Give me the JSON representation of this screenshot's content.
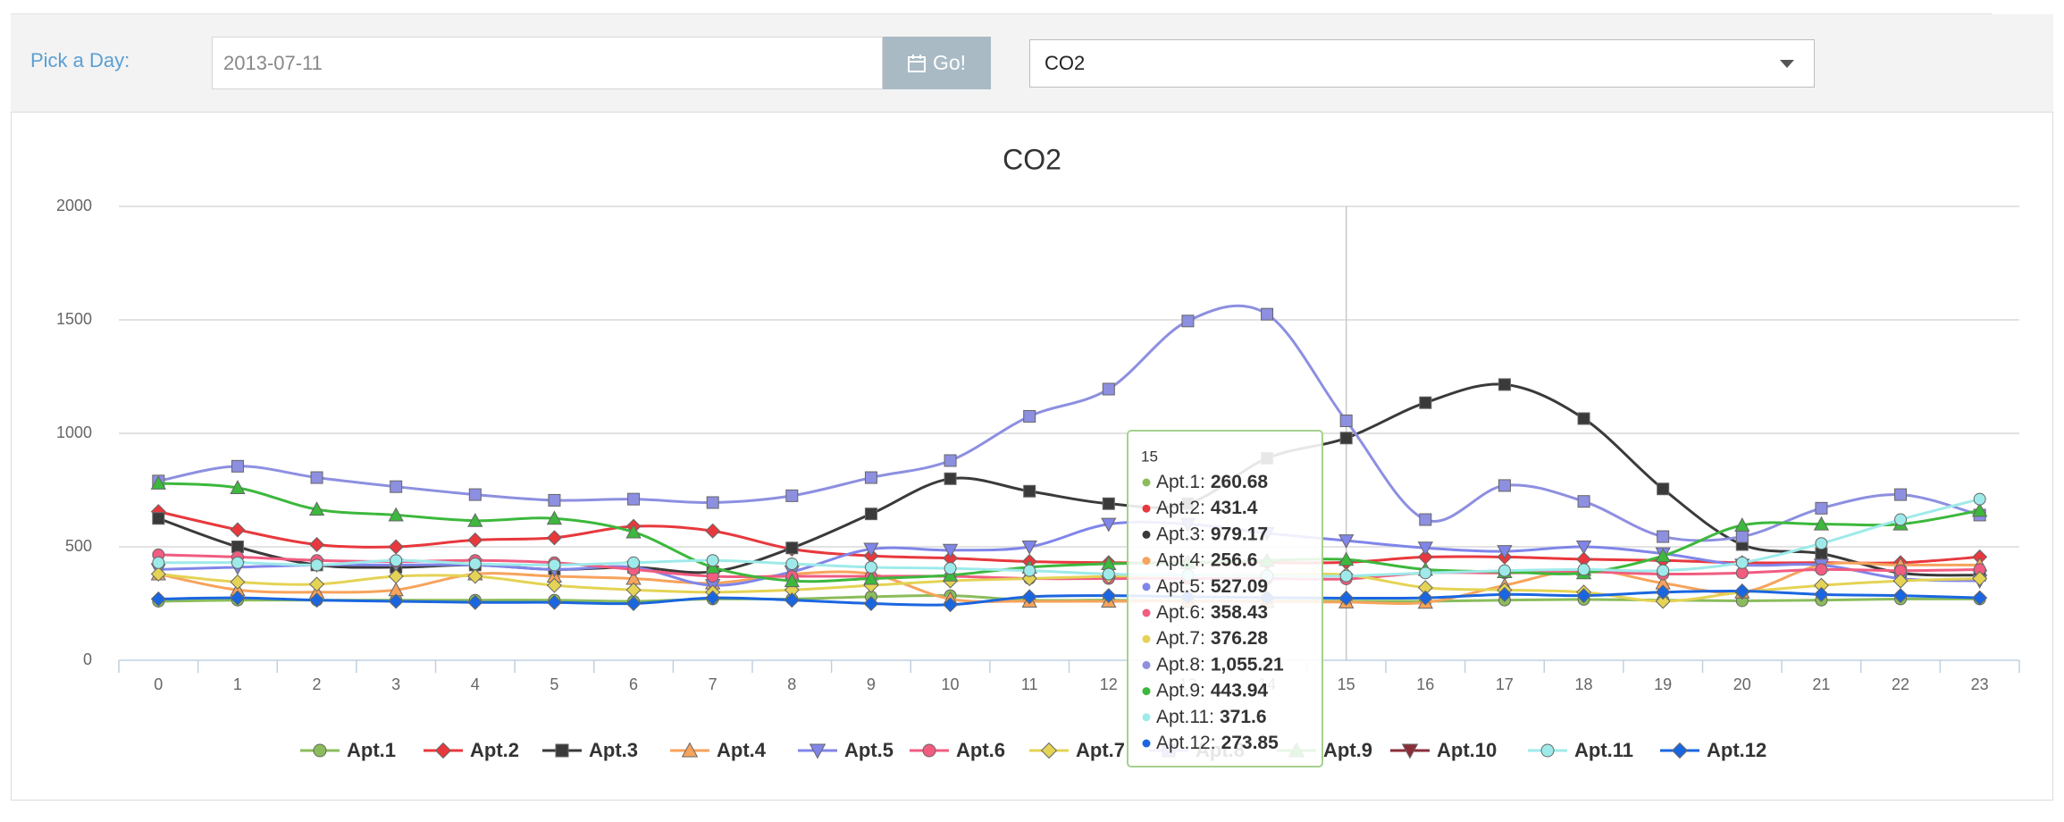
{
  "header": {
    "label": "Pick a Day:",
    "date": "2013-07-11",
    "button": "Go!",
    "select": "CO2"
  },
  "chart_data": {
    "type": "line",
    "title": "CO2",
    "categories": [
      0,
      1,
      2,
      3,
      4,
      5,
      6,
      7,
      8,
      9,
      10,
      11,
      12,
      13,
      14,
      15,
      16,
      17,
      18,
      19,
      20,
      21,
      22,
      23
    ],
    "ylim": [
      0,
      2000
    ],
    "yticks": [
      0,
      500,
      1000,
      1500,
      2000
    ],
    "grid": true,
    "smooth": true,
    "legend": "bottom",
    "series": [
      {
        "name": "Apt.1",
        "color": "#8bbc5b",
        "symbol": "circle",
        "values": [
          260,
          265,
          265,
          265,
          265,
          265,
          260,
          270,
          270,
          280,
          285,
          265,
          265,
          262,
          261,
          260.68,
          260,
          265,
          268,
          265,
          262,
          265,
          270,
          270
        ]
      },
      {
        "name": "Apt.2",
        "color": "#e8383d",
        "symbol": "diamond",
        "values": [
          655,
          575,
          510,
          500,
          530,
          540,
          590,
          570,
          490,
          460,
          450,
          435,
          430,
          430,
          430,
          431.4,
          455,
          455,
          445,
          440,
          430,
          430,
          430,
          455
        ]
      },
      {
        "name": "Apt.3",
        "color": "#3a3a3a",
        "symbol": "square",
        "values": [
          625,
          500,
          420,
          410,
          420,
          400,
          410,
          390,
          495,
          645,
          800,
          745,
          690,
          690,
          890,
          979.17,
          1135,
          1215,
          1065,
          755,
          510,
          470,
          385,
          375
        ]
      },
      {
        "name": "Apt.4",
        "color": "#f7a35c",
        "symbol": "triangle",
        "values": [
          380,
          310,
          300,
          310,
          380,
          370,
          360,
          340,
          380,
          380,
          270,
          260,
          260,
          260,
          258,
          256.6,
          255,
          330,
          400,
          340,
          300,
          420,
          420,
          420
        ]
      },
      {
        "name": "Apt.5",
        "color": "#8085e9",
        "symbol": "triangle-down",
        "values": [
          400,
          410,
          420,
          420,
          420,
          400,
          410,
          330,
          390,
          490,
          485,
          500,
          600,
          600,
          560,
          527.09,
          495,
          480,
          500,
          470,
          420,
          420,
          360,
          350
        ]
      },
      {
        "name": "Apt.6",
        "color": "#f15c80",
        "symbol": "circle",
        "values": [
          465,
          455,
          440,
          435,
          440,
          430,
          400,
          370,
          370,
          370,
          370,
          360,
          360,
          360,
          360,
          358.43,
          385,
          385,
          390,
          380,
          385,
          400,
          395,
          400
        ]
      },
      {
        "name": "Apt.7",
        "color": "#e4d354",
        "symbol": "diamond",
        "values": [
          380,
          345,
          335,
          370,
          370,
          330,
          310,
          300,
          310,
          330,
          350,
          360,
          370,
          375,
          376,
          376.28,
          320,
          310,
          300,
          260,
          300,
          330,
          350,
          360
        ]
      },
      {
        "name": "Apt.8",
        "color": "#8d8fe0",
        "symbol": "square",
        "values": [
          790,
          855,
          805,
          765,
          730,
          705,
          710,
          695,
          725,
          805,
          880,
          1075,
          1195,
          1495,
          1525,
          1055.21,
          620,
          770,
          700,
          545,
          545,
          670,
          730,
          640
        ]
      },
      {
        "name": "Apt.9",
        "color": "#3cb83c",
        "symbol": "triangle",
        "values": [
          780,
          760,
          665,
          640,
          615,
          625,
          565,
          410,
          350,
          360,
          375,
          410,
          425,
          430,
          440,
          443.94,
          400,
          390,
          385,
          460,
          595,
          600,
          600,
          660
        ]
      },
      {
        "name": "Apt.10",
        "color": "#8b2e3a",
        "symbol": "triangle-down",
        "values": [
          null,
          null,
          null,
          null,
          null,
          null,
          null,
          null,
          null,
          null,
          null,
          null,
          null,
          null,
          null,
          null,
          null,
          null,
          null,
          null,
          null,
          null,
          null,
          null
        ]
      },
      {
        "name": "Apt.11",
        "color": "#9eeaea",
        "symbol": "circle",
        "values": [
          430,
          430,
          420,
          440,
          425,
          420,
          430,
          440,
          425,
          410,
          405,
          395,
          380,
          375,
          372,
          371.6,
          385,
          395,
          400,
          395,
          430,
          515,
          620,
          710
        ]
      },
      {
        "name": "Apt.12",
        "color": "#1a66e0",
        "symbol": "diamond",
        "values": [
          270,
          275,
          265,
          260,
          255,
          255,
          250,
          275,
          265,
          250,
          245,
          280,
          285,
          280,
          276,
          273.85,
          275,
          290,
          285,
          300,
          305,
          290,
          285,
          275
        ]
      }
    ],
    "tooltip": {
      "title": "15",
      "rows": [
        {
          "label": "Apt.1:",
          "value": "260.68"
        },
        {
          "label": "Apt.2:",
          "value": "431.4"
        },
        {
          "label": "Apt.3:",
          "value": "979.17"
        },
        {
          "label": "Apt.4:",
          "value": "256.6"
        },
        {
          "label": "Apt.5:",
          "value": "527.09"
        },
        {
          "label": "Apt.6:",
          "value": "358.43"
        },
        {
          "label": "Apt.7:",
          "value": "376.28"
        },
        {
          "label": "Apt.8:",
          "value": "1,055.21"
        },
        {
          "label": "Apt.9:",
          "value": "443.94"
        },
        {
          "label": "Apt.11:",
          "value": "371.6"
        },
        {
          "label": "Apt.12:",
          "value": "273.85"
        }
      ]
    }
  }
}
